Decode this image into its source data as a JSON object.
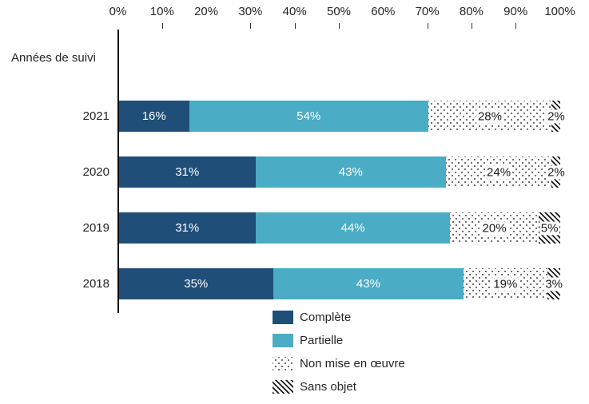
{
  "chart_data": {
    "type": "bar",
    "orientation": "horizontal",
    "stacked": true,
    "title": "",
    "axis_label": "Années de suivi",
    "value_suffix": "%",
    "x_tick_labels": [
      "0%",
      "10%",
      "20%",
      "30%",
      "40%",
      "50%",
      "60%",
      "70%",
      "80%",
      "90%",
      "100%"
    ],
    "visible_tick_marks_pct": [
      10,
      30,
      40,
      50,
      70,
      80,
      90
    ],
    "xlim": [
      0,
      100
    ],
    "grid": false,
    "legend_position": "bottom-center",
    "categories": [
      "2021",
      "2020",
      "2019",
      "2018"
    ],
    "series": [
      {
        "name": "Complète",
        "style": "solid",
        "color": "#1F4E79",
        "values": [
          16,
          31,
          31,
          35
        ]
      },
      {
        "name": "Partielle",
        "style": "solid",
        "color": "#4BACC6",
        "values": [
          54,
          43,
          44,
          43
        ]
      },
      {
        "name": "Non mise en œuvre",
        "style": "dotted",
        "color": "",
        "values": [
          28,
          24,
          20,
          19
        ]
      },
      {
        "name": "Sans objet",
        "style": "hatched",
        "color": "",
        "values": [
          2,
          2,
          5,
          3
        ]
      }
    ]
  },
  "colors": {
    "complete_fill": "#1F4E79",
    "partial_fill": "#4BACC6",
    "pattern_ink": "#1A1A1A",
    "text": "#262626",
    "background": "#FFFFFF"
  }
}
